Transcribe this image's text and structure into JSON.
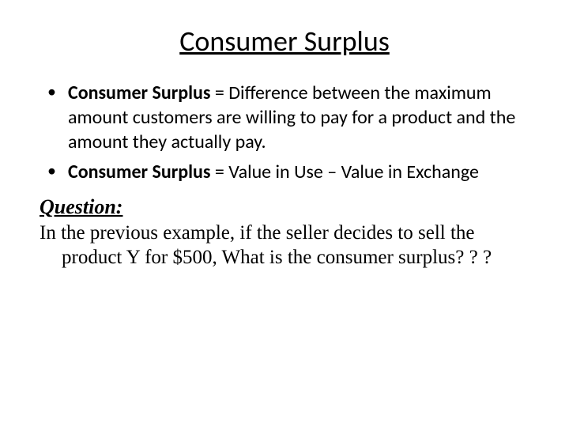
{
  "title": "Consumer Surplus",
  "bullets": [
    {
      "term": "Consumer Surplus",
      "definition": " = Difference between the maximum amount customers are willing to pay for a product and the amount they actually pay."
    },
    {
      "term": "Consumer Surplus",
      "definition": " = Value in Use – Value in Exchange"
    }
  ],
  "question": {
    "label": "Question:",
    "text": "In the previous example, if the seller decides to sell the product Y for $500, What is the consumer surplus? ? ?"
  },
  "styling": {
    "background_color": "#ffffff",
    "title_color": "#000000",
    "body_color": "#000000",
    "title_fontsize": 36,
    "bullet_fontsize": 24,
    "question_fontsize": 25,
    "body_font": "Calibri",
    "question_font": "Times New Roman"
  }
}
